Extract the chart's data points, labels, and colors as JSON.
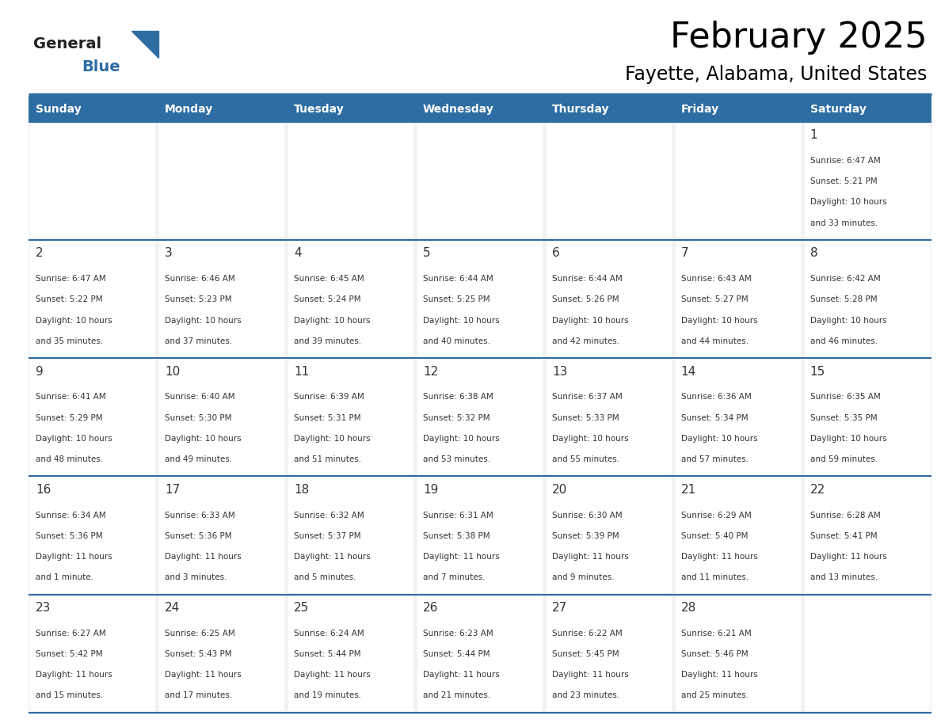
{
  "title": "February 2025",
  "subtitle": "Fayette, Alabama, United States",
  "days_of_week": [
    "Sunday",
    "Monday",
    "Tuesday",
    "Wednesday",
    "Thursday",
    "Friday",
    "Saturday"
  ],
  "header_bg": "#2E6DA4",
  "header_text": "#FFFFFF",
  "cell_bg_light": "#F2F2F2",
  "cell_bg_white": "#FFFFFF",
  "line_color": "#2E6DA4",
  "text_color": "#333333",
  "logo_general_color": "#222222",
  "logo_blue_color": "#2E6DA4",
  "calendar_data": [
    [
      null,
      null,
      null,
      null,
      null,
      null,
      {
        "day": 1,
        "sunrise": "6:47 AM",
        "sunset": "5:21 PM",
        "daylight_line1": "10 hours",
        "daylight_line2": "and 33 minutes."
      }
    ],
    [
      {
        "day": 2,
        "sunrise": "6:47 AM",
        "sunset": "5:22 PM",
        "daylight_line1": "10 hours",
        "daylight_line2": "and 35 minutes."
      },
      {
        "day": 3,
        "sunrise": "6:46 AM",
        "sunset": "5:23 PM",
        "daylight_line1": "10 hours",
        "daylight_line2": "and 37 minutes."
      },
      {
        "day": 4,
        "sunrise": "6:45 AM",
        "sunset": "5:24 PM",
        "daylight_line1": "10 hours",
        "daylight_line2": "and 39 minutes."
      },
      {
        "day": 5,
        "sunrise": "6:44 AM",
        "sunset": "5:25 PM",
        "daylight_line1": "10 hours",
        "daylight_line2": "and 40 minutes."
      },
      {
        "day": 6,
        "sunrise": "6:44 AM",
        "sunset": "5:26 PM",
        "daylight_line1": "10 hours",
        "daylight_line2": "and 42 minutes."
      },
      {
        "day": 7,
        "sunrise": "6:43 AM",
        "sunset": "5:27 PM",
        "daylight_line1": "10 hours",
        "daylight_line2": "and 44 minutes."
      },
      {
        "day": 8,
        "sunrise": "6:42 AM",
        "sunset": "5:28 PM",
        "daylight_line1": "10 hours",
        "daylight_line2": "and 46 minutes."
      }
    ],
    [
      {
        "day": 9,
        "sunrise": "6:41 AM",
        "sunset": "5:29 PM",
        "daylight_line1": "10 hours",
        "daylight_line2": "and 48 minutes."
      },
      {
        "day": 10,
        "sunrise": "6:40 AM",
        "sunset": "5:30 PM",
        "daylight_line1": "10 hours",
        "daylight_line2": "and 49 minutes."
      },
      {
        "day": 11,
        "sunrise": "6:39 AM",
        "sunset": "5:31 PM",
        "daylight_line1": "10 hours",
        "daylight_line2": "and 51 minutes."
      },
      {
        "day": 12,
        "sunrise": "6:38 AM",
        "sunset": "5:32 PM",
        "daylight_line1": "10 hours",
        "daylight_line2": "and 53 minutes."
      },
      {
        "day": 13,
        "sunrise": "6:37 AM",
        "sunset": "5:33 PM",
        "daylight_line1": "10 hours",
        "daylight_line2": "and 55 minutes."
      },
      {
        "day": 14,
        "sunrise": "6:36 AM",
        "sunset": "5:34 PM",
        "daylight_line1": "10 hours",
        "daylight_line2": "and 57 minutes."
      },
      {
        "day": 15,
        "sunrise": "6:35 AM",
        "sunset": "5:35 PM",
        "daylight_line1": "10 hours",
        "daylight_line2": "and 59 minutes."
      }
    ],
    [
      {
        "day": 16,
        "sunrise": "6:34 AM",
        "sunset": "5:36 PM",
        "daylight_line1": "11 hours",
        "daylight_line2": "and 1 minute."
      },
      {
        "day": 17,
        "sunrise": "6:33 AM",
        "sunset": "5:36 PM",
        "daylight_line1": "11 hours",
        "daylight_line2": "and 3 minutes."
      },
      {
        "day": 18,
        "sunrise": "6:32 AM",
        "sunset": "5:37 PM",
        "daylight_line1": "11 hours",
        "daylight_line2": "and 5 minutes."
      },
      {
        "day": 19,
        "sunrise": "6:31 AM",
        "sunset": "5:38 PM",
        "daylight_line1": "11 hours",
        "daylight_line2": "and 7 minutes."
      },
      {
        "day": 20,
        "sunrise": "6:30 AM",
        "sunset": "5:39 PM",
        "daylight_line1": "11 hours",
        "daylight_line2": "and 9 minutes."
      },
      {
        "day": 21,
        "sunrise": "6:29 AM",
        "sunset": "5:40 PM",
        "daylight_line1": "11 hours",
        "daylight_line2": "and 11 minutes."
      },
      {
        "day": 22,
        "sunrise": "6:28 AM",
        "sunset": "5:41 PM",
        "daylight_line1": "11 hours",
        "daylight_line2": "and 13 minutes."
      }
    ],
    [
      {
        "day": 23,
        "sunrise": "6:27 AM",
        "sunset": "5:42 PM",
        "daylight_line1": "11 hours",
        "daylight_line2": "and 15 minutes."
      },
      {
        "day": 24,
        "sunrise": "6:25 AM",
        "sunset": "5:43 PM",
        "daylight_line1": "11 hours",
        "daylight_line2": "and 17 minutes."
      },
      {
        "day": 25,
        "sunrise": "6:24 AM",
        "sunset": "5:44 PM",
        "daylight_line1": "11 hours",
        "daylight_line2": "and 19 minutes."
      },
      {
        "day": 26,
        "sunrise": "6:23 AM",
        "sunset": "5:44 PM",
        "daylight_line1": "11 hours",
        "daylight_line2": "and 21 minutes."
      },
      {
        "day": 27,
        "sunrise": "6:22 AM",
        "sunset": "5:45 PM",
        "daylight_line1": "11 hours",
        "daylight_line2": "and 23 minutes."
      },
      {
        "day": 28,
        "sunrise": "6:21 AM",
        "sunset": "5:46 PM",
        "daylight_line1": "11 hours",
        "daylight_line2": "and 25 minutes."
      },
      null
    ]
  ]
}
